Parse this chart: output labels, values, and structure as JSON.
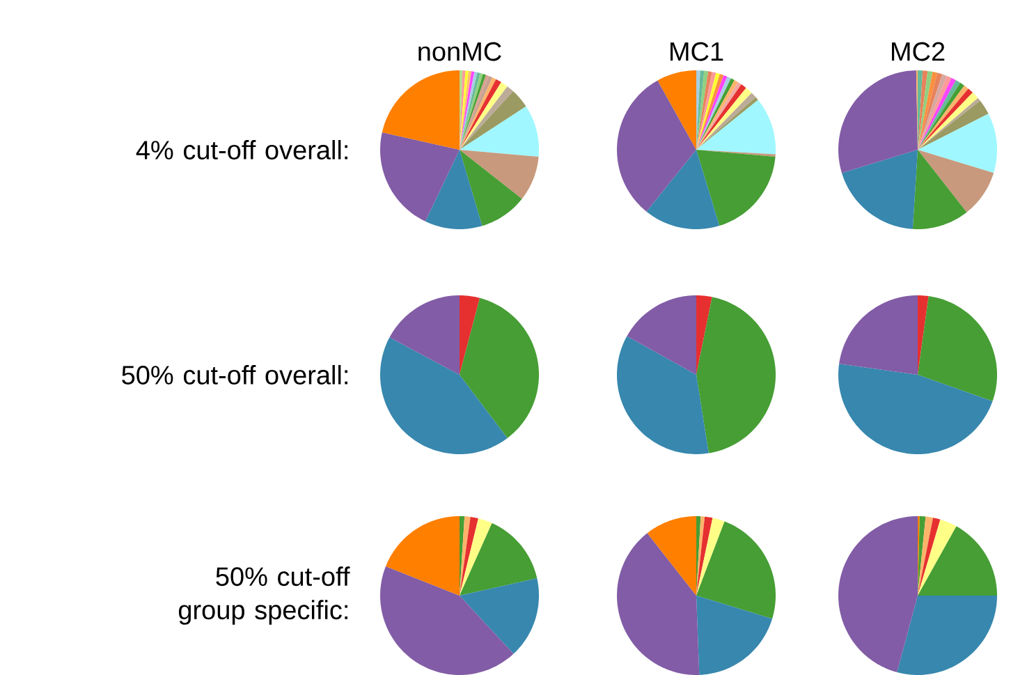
{
  "chart_data": [
    {
      "type": "pie",
      "title": "nonMC",
      "ylabel": "4% cut-off overall:",
      "categories": [
        null,
        null,
        null,
        null,
        null,
        null,
        null,
        null,
        null,
        null,
        null,
        null,
        null,
        null,
        null,
        null,
        null,
        null,
        null,
        null,
        null,
        null
      ],
      "values": [
        0.6,
        0.6,
        0.6,
        0.6,
        0.6,
        0.6,
        0.6,
        0.6,
        0.6,
        0.6,
        0.8,
        0.8,
        1.2,
        1.5,
        1.5,
        4,
        10.6,
        9.2,
        9.8,
        11.7,
        21.4,
        21.5
      ],
      "colors": [
        "#b2df8a",
        "#fb9a99",
        "#ffff33",
        "#fdbf6f",
        "#ff44ff",
        "#a6cee3",
        "#66bb99",
        "#90d080",
        "#46a034",
        "#d8a090",
        "#c8a090",
        "#fdb46a",
        "#e63030",
        "#ffff88",
        "#bbab98",
        "#9a9a62",
        "#a0f7ff",
        "#c8997c",
        "#469e34",
        "#3787ae",
        "#825ca6",
        "#ff7f00"
      ]
    },
    {
      "type": "pie",
      "title": "MC1",
      "categories": [
        null,
        null,
        null,
        null,
        null,
        null,
        null,
        null,
        null,
        null,
        null,
        null,
        null,
        null,
        null,
        null,
        null,
        null,
        null,
        null,
        null,
        null
      ],
      "values": [
        0.8,
        0.8,
        0.8,
        0.8,
        0.8,
        0.8,
        0.8,
        0.8,
        0.8,
        0.8,
        0.8,
        0.8,
        1.2,
        1.5,
        1.2,
        0.7,
        11.7,
        0.5,
        18.9,
        15.5,
        31.1,
        8.1
      ],
      "colors": [
        "#a6cee3",
        "#66bb99",
        "#90d080",
        "#e8825a",
        "#fb9a99",
        "#ffff33",
        "#fd9040",
        "#ff44ff",
        "#a6cee3",
        "#46a034",
        "#fdb46a",
        "#f4a8a0",
        "#e63030",
        "#ffff88",
        "#bbab98",
        "#9a9a62",
        "#a0f7ff",
        "#c8997c",
        "#469e34",
        "#3787ae",
        "#825ca6",
        "#ff7f00"
      ]
    },
    {
      "type": "pie",
      "title": "MC2",
      "categories": [
        null,
        null,
        null,
        null,
        null,
        null,
        null,
        null,
        null,
        null,
        null,
        null,
        null,
        null,
        null,
        null,
        null,
        null,
        null,
        null,
        null
      ],
      "values": [
        1,
        1,
        1,
        1,
        1,
        1,
        1,
        1,
        1,
        1,
        1,
        1.2,
        1.5,
        0.7,
        3.1,
        12.2,
        9.7,
        11.6,
        19.3,
        29.4,
        0.3
      ],
      "colors": [
        "#66bb99",
        "#e8825a",
        "#90d080",
        "#fd9040",
        "#e8825a",
        "#d8a8a0",
        "#fb9a99",
        "#ff44ff",
        "#66bb99",
        "#46a034",
        "#fdb46a",
        "#e63030",
        "#ffff88",
        "#bbab98",
        "#9a9a62",
        "#a0f7ff",
        "#c8997c",
        "#469e34",
        "#3787ae",
        "#825ca6",
        "#fdb46a"
      ]
    },
    {
      "type": "pie",
      "ylabel": "50% cut-off overall:",
      "categories": [
        null,
        null,
        null,
        null
      ],
      "values": [
        4.1,
        35.6,
        43.1,
        17.2
      ],
      "colors": [
        "#e63030",
        "#469e34",
        "#3787ae",
        "#825ca6"
      ]
    },
    {
      "type": "pie",
      "categories": [
        null,
        null,
        null,
        null
      ],
      "values": [
        3.2,
        44.3,
        35.6,
        16.9
      ],
      "colors": [
        "#e63030",
        "#469e34",
        "#3787ae",
        "#825ca6"
      ]
    },
    {
      "type": "pie",
      "categories": [
        null,
        null,
        null,
        null
      ],
      "values": [
        2.2,
        28.2,
        46.8,
        22.8
      ],
      "colors": [
        "#e63030",
        "#469e34",
        "#3787ae",
        "#825ca6"
      ]
    },
    {
      "type": "pie",
      "ylabel": "50% cut-off group specific:",
      "categories": [
        null,
        null,
        null,
        null,
        null,
        null,
        null,
        null
      ],
      "values": [
        1,
        1.2,
        1.6,
        2.9,
        14.8,
        16.6,
        42.9,
        19.0
      ],
      "colors": [
        "#469e34",
        "#fdb46a",
        "#e63030",
        "#ffff88",
        "#469e34",
        "#3787ae",
        "#825ca6",
        "#ff7f00"
      ]
    },
    {
      "type": "pie",
      "categories": [
        null,
        null,
        null,
        null,
        null,
        null,
        null,
        null
      ],
      "values": [
        0.9,
        0.8,
        1.6,
        2.5,
        23.9,
        19.7,
        40.0,
        10.6
      ],
      "colors": [
        "#469e34",
        "#fdb46a",
        "#e63030",
        "#ffff88",
        "#469e34",
        "#3787ae",
        "#825ca6",
        "#ff7f00"
      ]
    },
    {
      "type": "pie",
      "categories": [
        null,
        null,
        null,
        null,
        null,
        null,
        null,
        null
      ],
      "values": [
        0.4,
        1.2,
        1.5,
        1.5,
        3.5,
        16.9,
        29.2,
        45.8
      ],
      "colors": [
        "#ff7f00",
        "#469e34",
        "#fdb46a",
        "#e63030",
        "#ffff88",
        "#469e34",
        "#3787ae",
        "#825ca6"
      ]
    }
  ]
}
